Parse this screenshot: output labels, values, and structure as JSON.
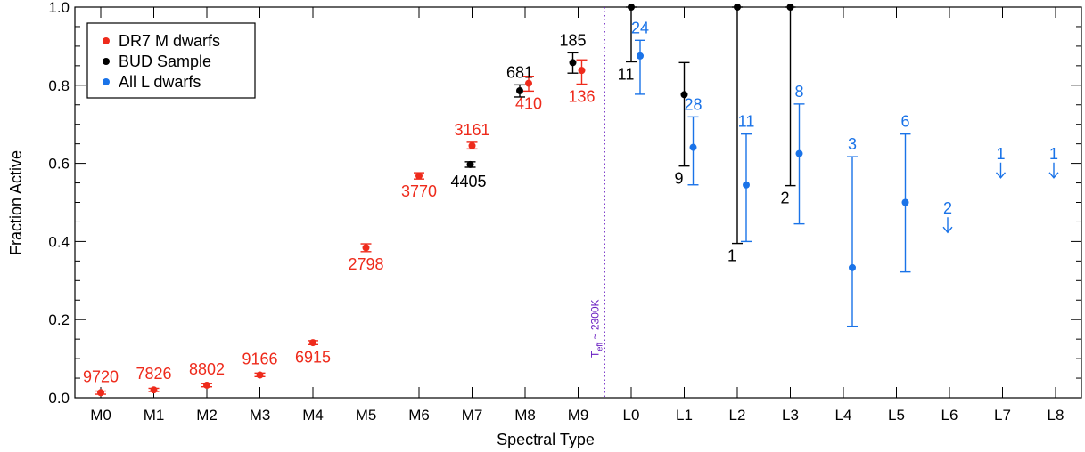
{
  "chart_data": {
    "type": "scatter",
    "xlabel": "Spectral Type",
    "ylabel": "Fraction Active",
    "categories": [
      "M0",
      "M1",
      "M2",
      "M3",
      "M4",
      "M5",
      "M6",
      "M7",
      "M8",
      "M9",
      "L0",
      "L1",
      "L2",
      "L3",
      "L4",
      "L5",
      "L6",
      "L7",
      "L8"
    ],
    "ylim": [
      0,
      1.0
    ],
    "yticks": [
      "0.0",
      "0.2",
      "0.4",
      "0.6",
      "0.8",
      "1.0"
    ],
    "legend": {
      "placement": "top-left",
      "entries": [
        "DR7 M dwarfs",
        "BUD Sample",
        "All L dwarfs"
      ]
    },
    "colors": {
      "dr7": "#ee2a1b",
      "bud": "#000000",
      "ldwarfs": "#1a73e8",
      "teff_line": "#6a1fc2"
    },
    "annotation": {
      "prefix": "T",
      "sub": "eff",
      "text": " ~ 2300K",
      "between": [
        "M9",
        "L0"
      ]
    },
    "series": [
      {
        "name": "DR7 M dwarfs",
        "points": [
          {
            "x": "M0",
            "y": 0.013,
            "lo": 0.009,
            "hi": 0.017,
            "label": "9720"
          },
          {
            "x": "M1",
            "y": 0.02,
            "lo": 0.016,
            "hi": 0.024,
            "label": "7826"
          },
          {
            "x": "M2",
            "y": 0.032,
            "lo": 0.028,
            "hi": 0.036,
            "label": "8802"
          },
          {
            "x": "M3",
            "y": 0.058,
            "lo": 0.054,
            "hi": 0.063,
            "label": "9166"
          },
          {
            "x": "M4",
            "y": 0.141,
            "lo": 0.136,
            "hi": 0.146,
            "label": "6915"
          },
          {
            "x": "M5",
            "y": 0.384,
            "lo": 0.374,
            "hi": 0.394,
            "label": "2798"
          },
          {
            "x": "M6",
            "y": 0.568,
            "lo": 0.56,
            "hi": 0.576,
            "label": "3770"
          },
          {
            "x": "M7",
            "y": 0.645,
            "lo": 0.637,
            "hi": 0.654,
            "label": "3161"
          },
          {
            "x": "M8",
            "y": 0.805,
            "lo": 0.785,
            "hi": 0.823,
            "label": "410"
          },
          {
            "x": "M9",
            "y": 0.838,
            "lo": 0.803,
            "hi": 0.865,
            "label": "136"
          }
        ]
      },
      {
        "name": "BUD Sample",
        "points": [
          {
            "x": "M7",
            "y": 0.597,
            "lo": 0.59,
            "hi": 0.604,
            "label": "4405"
          },
          {
            "x": "M8",
            "y": 0.786,
            "lo": 0.77,
            "hi": 0.801,
            "label": "681"
          },
          {
            "x": "M9",
            "y": 0.858,
            "lo": 0.831,
            "hi": 0.883,
            "label": "185"
          },
          {
            "x": "L0",
            "y": 1.0,
            "lo": 0.86,
            "hi": 1.0,
            "label": "11"
          },
          {
            "x": "L1",
            "y": 0.776,
            "lo": 0.593,
            "hi": 0.858,
            "label": "9"
          },
          {
            "x": "L2",
            "y": 1.0,
            "lo": 0.395,
            "hi": 1.0,
            "label": "1"
          },
          {
            "x": "L3",
            "y": 1.0,
            "lo": 0.543,
            "hi": 1.0,
            "label": "2"
          }
        ]
      },
      {
        "name": "All L dwarfs",
        "points": [
          {
            "x": "L0",
            "y": 0.875,
            "lo": 0.777,
            "hi": 0.915,
            "label": "24"
          },
          {
            "x": "L1",
            "y": 0.641,
            "lo": 0.545,
            "hi": 0.719,
            "label": "28"
          },
          {
            "x": "L2",
            "y": 0.545,
            "lo": 0.4,
            "hi": 0.675,
            "label": "11"
          },
          {
            "x": "L3",
            "y": 0.625,
            "lo": 0.445,
            "hi": 0.752,
            "label": "8"
          },
          {
            "x": "L4",
            "y": 0.333,
            "lo": 0.183,
            "hi": 0.617,
            "label": "3"
          },
          {
            "x": "L5",
            "y": 0.5,
            "lo": 0.322,
            "hi": 0.675,
            "label": "6"
          }
        ],
        "upper_limits": [
          {
            "x": "L6",
            "y": 0.43,
            "label": "2"
          },
          {
            "x": "L7",
            "y": 0.57,
            "label": "1"
          },
          {
            "x": "L8",
            "y": 0.57,
            "label": "1"
          }
        ]
      }
    ]
  }
}
